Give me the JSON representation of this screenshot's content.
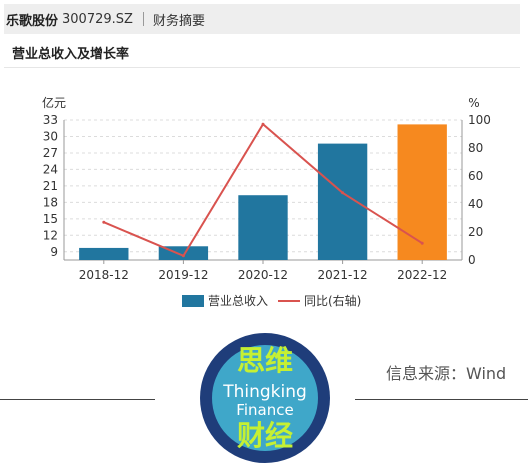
{
  "header": {
    "company": "乐歌股份",
    "code": "300729.SZ",
    "tab": "财务摘要"
  },
  "section": {
    "title": "营业总收入及增长率"
  },
  "source": "信息来源：Wind",
  "logo": {
    "line1": "思维",
    "line2": "Thingking",
    "line3": "Finance",
    "line4": "财经",
    "colors": {
      "outer": "#1f3d7a",
      "inner": "#3fa7c9",
      "text": "#c6f032",
      "textEn": "#ffffff"
    }
  },
  "chart_data": {
    "type": "bar",
    "categories": [
      "2018-12",
      "2019-12",
      "2020-12",
      "2021-12",
      "2022-12"
    ],
    "series": [
      {
        "name": "营业总收入",
        "type": "bar",
        "axis": "left",
        "values": [
          9.7,
          10.0,
          19.3,
          28.7,
          32.2
        ],
        "color": "#21769f",
        "highlight_color": "#f6891f",
        "highlight_index": 4
      },
      {
        "name": "同比(右轴)",
        "type": "line",
        "axis": "right",
        "values": [
          27,
          3,
          97,
          48,
          12
        ],
        "color": "#d9534f"
      }
    ],
    "y_left": {
      "label": "亿元",
      "min": 7.5,
      "max": 33,
      "ticks": [
        9,
        12,
        15,
        18,
        21,
        24,
        27,
        30,
        33
      ]
    },
    "y_right": {
      "label": "%",
      "min": 0,
      "max": 100,
      "ticks": [
        0,
        20,
        40,
        60,
        80,
        100
      ]
    },
    "grid": true,
    "legend": "bottom"
  }
}
